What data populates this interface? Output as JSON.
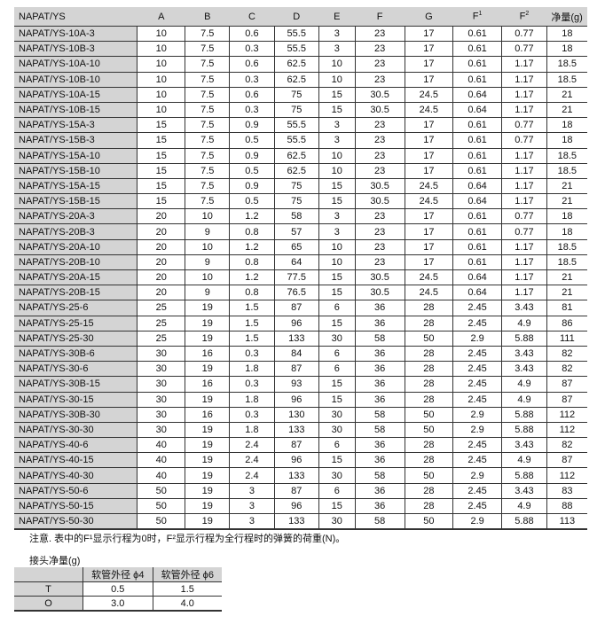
{
  "main_table": {
    "headers": [
      "NAPAT/YS",
      "A",
      "B",
      "C",
      "D",
      "E",
      "F",
      "G",
      "F1",
      "F2",
      "净量(g)"
    ],
    "rows": [
      [
        "NAPAT/YS-10A-3",
        "10",
        "7.5",
        "0.6",
        "55.5",
        "3",
        "23",
        "17",
        "0.61",
        "0.77",
        "18"
      ],
      [
        "NAPAT/YS-10B-3",
        "10",
        "7.5",
        "0.3",
        "55.5",
        "3",
        "23",
        "17",
        "0.61",
        "0.77",
        "18"
      ],
      [
        "NAPAT/YS-10A-10",
        "10",
        "7.5",
        "0.6",
        "62.5",
        "10",
        "23",
        "17",
        "0.61",
        "1.17",
        "18.5"
      ],
      [
        "NAPAT/YS-10B-10",
        "10",
        "7.5",
        "0.3",
        "62.5",
        "10",
        "23",
        "17",
        "0.61",
        "1.17",
        "18.5"
      ],
      [
        "NAPAT/YS-10A-15",
        "10",
        "7.5",
        "0.6",
        "75",
        "15",
        "30.5",
        "24.5",
        "0.64",
        "1.17",
        "21"
      ],
      [
        "NAPAT/YS-10B-15",
        "10",
        "7.5",
        "0.3",
        "75",
        "15",
        "30.5",
        "24.5",
        "0.64",
        "1.17",
        "21"
      ],
      [
        "NAPAT/YS-15A-3",
        "15",
        "7.5",
        "0.9",
        "55.5",
        "3",
        "23",
        "17",
        "0.61",
        "0.77",
        "18"
      ],
      [
        "NAPAT/YS-15B-3",
        "15",
        "7.5",
        "0.5",
        "55.5",
        "3",
        "23",
        "17",
        "0.61",
        "0.77",
        "18"
      ],
      [
        "NAPAT/YS-15A-10",
        "15",
        "7.5",
        "0.9",
        "62.5",
        "10",
        "23",
        "17",
        "0.61",
        "1.17",
        "18.5"
      ],
      [
        "NAPAT/YS-15B-10",
        "15",
        "7.5",
        "0.5",
        "62.5",
        "10",
        "23",
        "17",
        "0.61",
        "1.17",
        "18.5"
      ],
      [
        "NAPAT/YS-15A-15",
        "15",
        "7.5",
        "0.9",
        "75",
        "15",
        "30.5",
        "24.5",
        "0.64",
        "1.17",
        "21"
      ],
      [
        "NAPAT/YS-15B-15",
        "15",
        "7.5",
        "0.5",
        "75",
        "15",
        "30.5",
        "24.5",
        "0.64",
        "1.17",
        "21"
      ],
      [
        "NAPAT/YS-20A-3",
        "20",
        "10",
        "1.2",
        "58",
        "3",
        "23",
        "17",
        "0.61",
        "0.77",
        "18"
      ],
      [
        "NAPAT/YS-20B-3",
        "20",
        "9",
        "0.8",
        "57",
        "3",
        "23",
        "17",
        "0.61",
        "0.77",
        "18"
      ],
      [
        "NAPAT/YS-20A-10",
        "20",
        "10",
        "1.2",
        "65",
        "10",
        "23",
        "17",
        "0.61",
        "1.17",
        "18.5"
      ],
      [
        "NAPAT/YS-20B-10",
        "20",
        "9",
        "0.8",
        "64",
        "10",
        "23",
        "17",
        "0.61",
        "1.17",
        "18.5"
      ],
      [
        "NAPAT/YS-20A-15",
        "20",
        "10",
        "1.2",
        "77.5",
        "15",
        "30.5",
        "24.5",
        "0.64",
        "1.17",
        "21"
      ],
      [
        "NAPAT/YS-20B-15",
        "20",
        "9",
        "0.8",
        "76.5",
        "15",
        "30.5",
        "24.5",
        "0.64",
        "1.17",
        "21"
      ],
      [
        "NAPAT/YS-25-6",
        "25",
        "19",
        "1.5",
        "87",
        "6",
        "36",
        "28",
        "2.45",
        "3.43",
        "81"
      ],
      [
        "NAPAT/YS-25-15",
        "25",
        "19",
        "1.5",
        "96",
        "15",
        "36",
        "28",
        "2.45",
        "4.9",
        "86"
      ],
      [
        "NAPAT/YS-25-30",
        "25",
        "19",
        "1.5",
        "133",
        "30",
        "58",
        "50",
        "2.9",
        "5.88",
        "111"
      ],
      [
        "NAPAT/YS-30B-6",
        "30",
        "16",
        "0.3",
        "84",
        "6",
        "36",
        "28",
        "2.45",
        "3.43",
        "82"
      ],
      [
        "NAPAT/YS-30-6",
        "30",
        "19",
        "1.8",
        "87",
        "6",
        "36",
        "28",
        "2.45",
        "3.43",
        "82"
      ],
      [
        "NAPAT/YS-30B-15",
        "30",
        "16",
        "0.3",
        "93",
        "15",
        "36",
        "28",
        "2.45",
        "4.9",
        "87"
      ],
      [
        "NAPAT/YS-30-15",
        "30",
        "19",
        "1.8",
        "96",
        "15",
        "36",
        "28",
        "2.45",
        "4.9",
        "87"
      ],
      [
        "NAPAT/YS-30B-30",
        "30",
        "16",
        "0.3",
        "130",
        "30",
        "58",
        "50",
        "2.9",
        "5.88",
        "112"
      ],
      [
        "NAPAT/YS-30-30",
        "30",
        "19",
        "1.8",
        "133",
        "30",
        "58",
        "50",
        "2.9",
        "5.88",
        "112"
      ],
      [
        "NAPAT/YS-40-6",
        "40",
        "19",
        "2.4",
        "87",
        "6",
        "36",
        "28",
        "2.45",
        "3.43",
        "82"
      ],
      [
        "NAPAT/YS-40-15",
        "40",
        "19",
        "2.4",
        "96",
        "15",
        "36",
        "28",
        "2.45",
        "4.9",
        "87"
      ],
      [
        "NAPAT/YS-40-30",
        "40",
        "19",
        "2.4",
        "133",
        "30",
        "58",
        "50",
        "2.9",
        "5.88",
        "112"
      ],
      [
        "NAPAT/YS-50-6",
        "50",
        "19",
        "3",
        "87",
        "6",
        "36",
        "28",
        "2.45",
        "3.43",
        "83"
      ],
      [
        "NAPAT/YS-50-15",
        "50",
        "19",
        "3",
        "96",
        "15",
        "36",
        "28",
        "2.45",
        "4.9",
        "88"
      ],
      [
        "NAPAT/YS-50-30",
        "50",
        "19",
        "3",
        "133",
        "30",
        "58",
        "50",
        "2.9",
        "5.88",
        "113"
      ]
    ]
  },
  "note": "注意. 表中的F¹显示行程为0时，F²显示行程为全行程时的弹簧的荷重(N)。",
  "sub_label": "接头净量(g)",
  "sub_table": {
    "headers": [
      "",
      "软管外径 ϕ4",
      "软管外径 ϕ6"
    ],
    "rows": [
      [
        "T",
        "0.5",
        "1.5"
      ],
      [
        "O",
        "3.0",
        "4.0"
      ]
    ]
  }
}
